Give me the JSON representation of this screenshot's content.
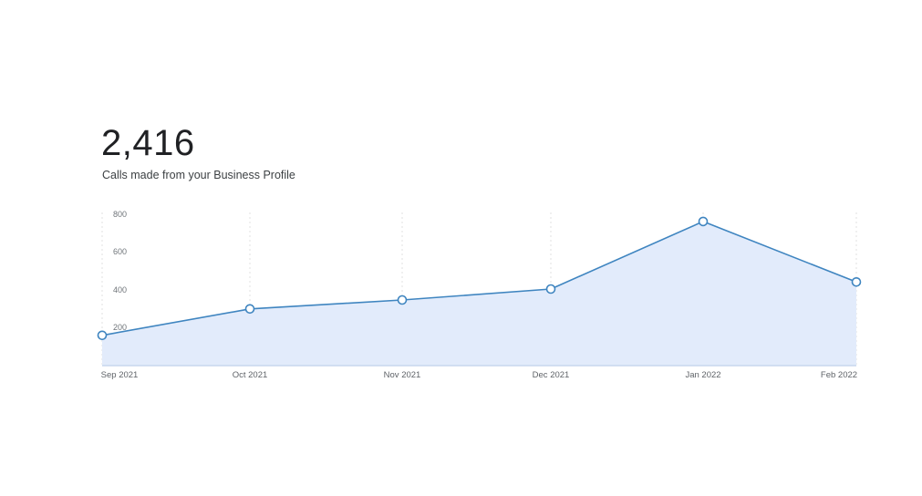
{
  "header": {
    "total": "2,416",
    "subtitle": "Calls made from your Business Profile"
  },
  "colors": {
    "line": "#3f85c0",
    "fill": "#e2ebfb",
    "point_fill": "#ffffff",
    "grid": "#e0e0e0",
    "baseline": "#c8d7ee"
  },
  "chart_data": {
    "type": "area",
    "title": "2,416",
    "subtitle": "Calls made from your Business Profile",
    "xlabel": "",
    "ylabel": "",
    "categories": [
      "Sep 2021",
      "Oct 2021",
      "Nov 2021",
      "Dec 2021",
      "Jan 2022",
      "Feb 2022"
    ],
    "values": [
      160,
      300,
      347,
      405,
      762,
      442
    ],
    "y_ticks": [
      "200",
      "400",
      "600",
      "800"
    ],
    "ylim": [
      0,
      800
    ],
    "grid": "vertical dashed",
    "legend": "none",
    "markers": "hollow circles"
  }
}
